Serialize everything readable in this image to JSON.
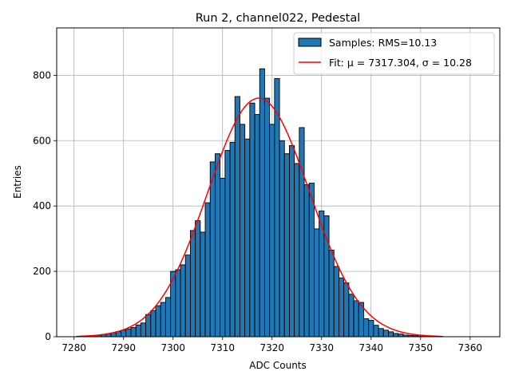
{
  "chart_data": {
    "type": "bar",
    "title": "Run 2, channel022, Pedestal",
    "xlabel": "ADC Counts",
    "ylabel": "Entries",
    "xlim": [
      7276.5,
      7366
    ],
    "ylim": [
      0,
      945
    ],
    "grid": true,
    "legend_position": "top-right",
    "x_ticks": [
      7280,
      7290,
      7300,
      7310,
      7320,
      7330,
      7340,
      7350,
      7360
    ],
    "y_ticks": [
      0,
      200,
      400,
      600,
      800
    ],
    "bin_width": 1,
    "bin_centers": [
      7281,
      7282,
      7283,
      7284,
      7285,
      7286,
      7287,
      7288,
      7289,
      7290,
      7291,
      7292,
      7293,
      7294,
      7295,
      7296,
      7297,
      7298,
      7299,
      7300,
      7301,
      7302,
      7303,
      7304,
      7305,
      7306,
      7307,
      7308,
      7309,
      7310,
      7311,
      7312,
      7313,
      7314,
      7315,
      7316,
      7317,
      7318,
      7319,
      7320,
      7321,
      7322,
      7323,
      7324,
      7325,
      7326,
      7327,
      7328,
      7329,
      7330,
      7331,
      7332,
      7333,
      7334,
      7335,
      7336,
      7337,
      7338,
      7339,
      7340,
      7341,
      7342,
      7343,
      7344,
      7345,
      7346,
      7347,
      7348,
      7349,
      7350,
      7351,
      7352,
      7353,
      7354
    ],
    "series": [
      {
        "name": "Samples: RMS=10.13",
        "kind": "histogram",
        "color": "#1f77b4",
        "edgecolor": "#000000",
        "values": [
          1,
          1,
          2,
          3,
          5,
          7,
          9,
          12,
          16,
          20,
          24,
          28,
          36,
          42,
          68,
          80,
          95,
          105,
          120,
          200,
          205,
          220,
          250,
          325,
          355,
          320,
          410,
          535,
          560,
          485,
          570,
          595,
          735,
          650,
          605,
          715,
          680,
          820,
          730,
          650,
          790,
          600,
          560,
          585,
          530,
          640,
          465,
          470,
          330,
          385,
          370,
          265,
          215,
          180,
          165,
          130,
          110,
          105,
          55,
          50,
          35,
          25,
          20,
          15,
          10,
          8,
          5,
          4,
          3,
          2,
          2,
          1,
          1,
          1
        ]
      },
      {
        "name": "Fit: μ = 7317.304, σ = 10.28",
        "kind": "gaussian-fit",
        "color": "#ff0000",
        "mu": 7317.304,
        "sigma": 10.28,
        "amplitude": 730,
        "x_range": [
          7281,
          7354
        ]
      }
    ]
  }
}
